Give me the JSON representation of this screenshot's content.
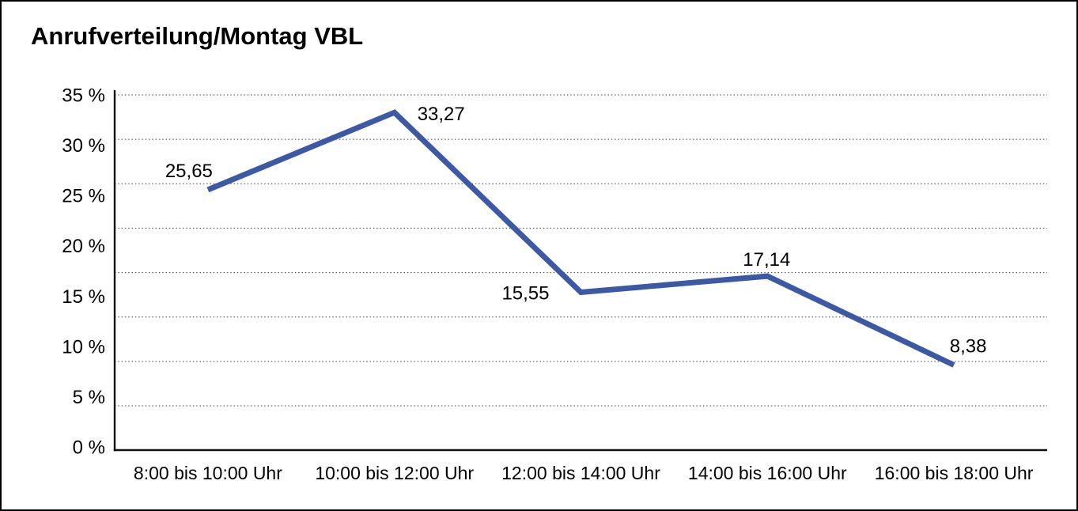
{
  "colors": {
    "line": "#3C59A6",
    "grid": "#3f3f3f",
    "axis": "#111111",
    "text": "#000000",
    "background": "#ffffff",
    "frame": "#000000"
  },
  "chart_data": {
    "type": "line",
    "title": "Anrufverteilung/Montag VBL",
    "categories": [
      "8:00 bis 10:00 Uhr",
      "10:00 bis 12:00 Uhr",
      "12:00 bis 14:00 Uhr",
      "14:00 bis 16:00 Uhr",
      "16:00 bis 18:00 Uhr"
    ],
    "values": [
      25.65,
      33.27,
      15.55,
      17.14,
      8.38
    ],
    "point_labels": [
      "25,65",
      "33,27",
      "15,55",
      "17,14",
      "8,38"
    ],
    "y_tick_labels": [
      "35 %",
      "30 %",
      "25 %",
      "20 %",
      "15 %",
      "10 %",
      "5 %",
      "0 %"
    ],
    "ylim": [
      0,
      35
    ],
    "xlabel": "",
    "ylabel": "",
    "grid": "horizontal-dotted",
    "legend": "none",
    "decimal_separator": ","
  }
}
